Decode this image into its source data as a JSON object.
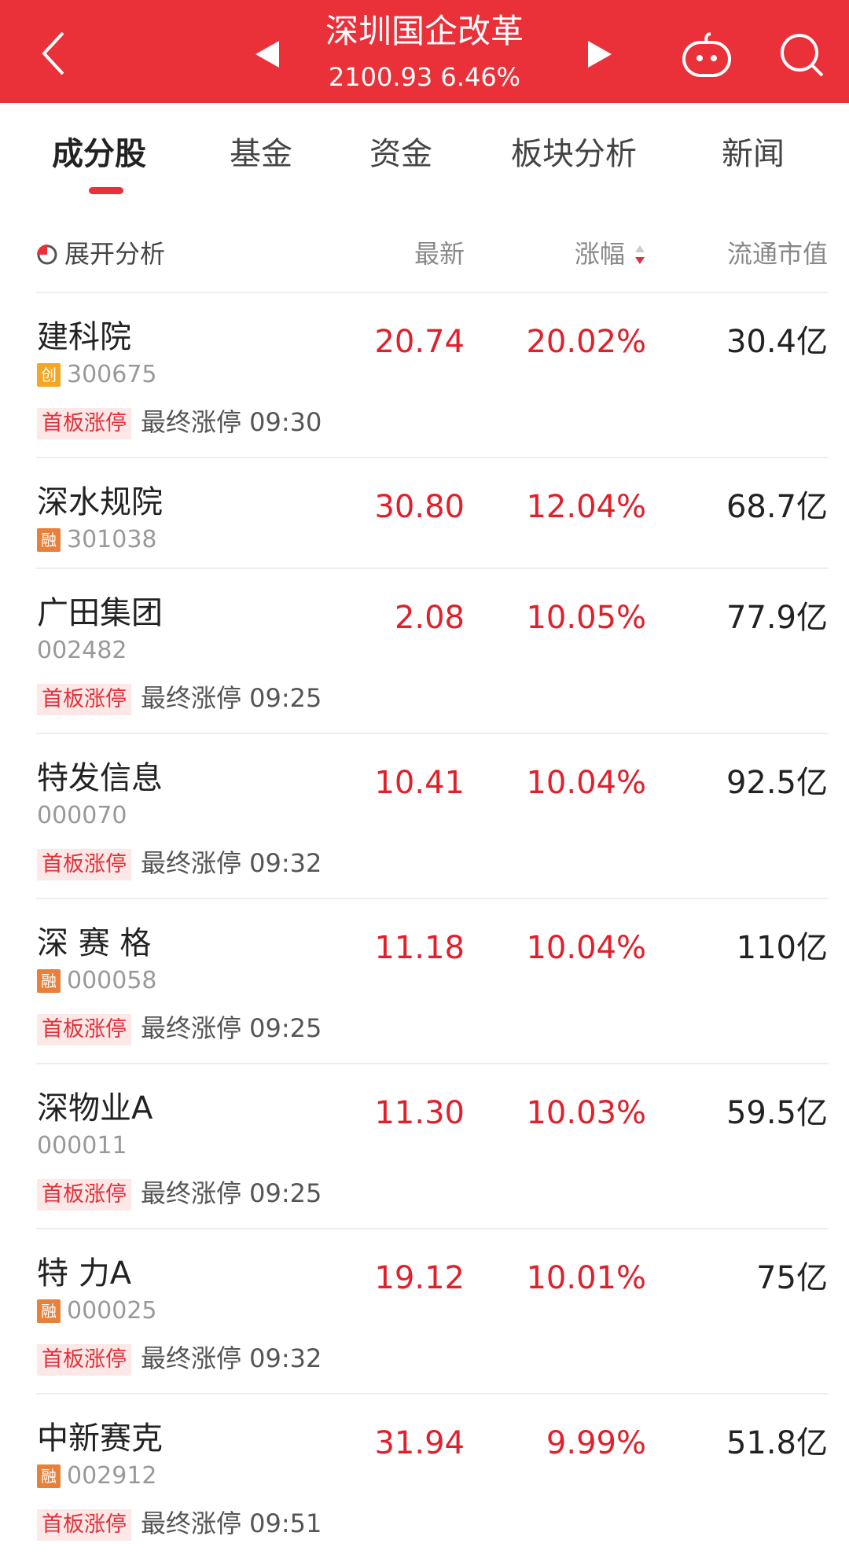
{
  "header": {
    "title": "深圳国企改革",
    "index_value": "2100.93",
    "index_change": "6.46%",
    "accent": "#ea3038"
  },
  "tabs": [
    {
      "label": "成分股",
      "active": true
    },
    {
      "label": "基金"
    },
    {
      "label": "资金"
    },
    {
      "label": "板块分析"
    },
    {
      "label": "新闻"
    }
  ],
  "columns": {
    "expand": "展开分析",
    "latest": "最新",
    "change": "涨幅",
    "market_cap": "流通市值",
    "sort": "descending"
  },
  "rows": [
    {
      "name": "建科院",
      "badge": "创",
      "code": "300675",
      "latest": "20.74",
      "change": "20.02%",
      "cap": "30.4亿",
      "tag": "首板涨停",
      "tag_text": "最终涨停 09:30"
    },
    {
      "name": "深水规院",
      "badge": "融",
      "code": "301038",
      "latest": "30.80",
      "change": "12.04%",
      "cap": "68.7亿"
    },
    {
      "name": "广田集团",
      "badge": "",
      "code": "002482",
      "latest": "2.08",
      "change": "10.05%",
      "cap": "77.9亿",
      "tag": "首板涨停",
      "tag_text": "最终涨停 09:25"
    },
    {
      "name": "特发信息",
      "badge": "",
      "code": "000070",
      "latest": "10.41",
      "change": "10.04%",
      "cap": "92.5亿",
      "tag": "首板涨停",
      "tag_text": "最终涨停 09:32"
    },
    {
      "name": "深 赛 格",
      "badge": "融",
      "code": "000058",
      "latest": "11.18",
      "change": "10.04%",
      "cap": "110亿",
      "tag": "首板涨停",
      "tag_text": "最终涨停 09:25"
    },
    {
      "name": "深物业A",
      "badge": "",
      "code": "000011",
      "latest": "11.30",
      "change": "10.03%",
      "cap": "59.5亿",
      "tag": "首板涨停",
      "tag_text": "最终涨停 09:25"
    },
    {
      "name": "特  力A",
      "badge": "融",
      "code": "000025",
      "latest": "19.12",
      "change": "10.01%",
      "cap": "75亿",
      "tag": "首板涨停",
      "tag_text": "最终涨停 09:32"
    },
    {
      "name": "中新赛克",
      "badge": "融",
      "code": "002912",
      "latest": "31.94",
      "change": "9.99%",
      "cap": "51.8亿",
      "tag": "首板涨停",
      "tag_text": "最终涨停 09:51"
    }
  ]
}
